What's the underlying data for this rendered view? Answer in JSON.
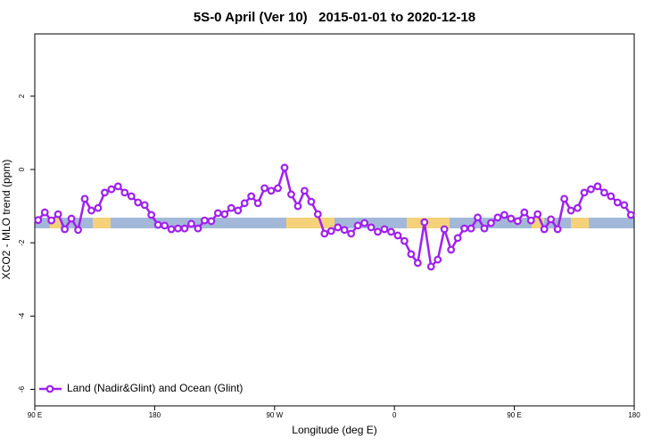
{
  "chart_data": {
    "type": "line",
    "title": "5S-0 April (Ver 10)   2015-01-01 to 2020-12-18",
    "xlabel": "Longitude (deg E)",
    "ylabel": "XCO2 - MLO trend (ppm)",
    "xlim": [
      90,
      540
    ],
    "ylim": [
      -6.45,
      3.7
    ],
    "xticks": [
      {
        "value": 90,
        "label": "90 E"
      },
      180,
      {
        "value": 270,
        "label": "90 W"
      },
      {
        "value": 360,
        "label": "0"
      },
      {
        "value": 450,
        "label": "90 E"
      },
      {
        "value": 540,
        "label": "180"
      }
    ],
    "yticks": [
      2,
      0,
      -2,
      -4,
      -6
    ],
    "grid": false,
    "legend": "bottom-left",
    "x": [
      92.5,
      97.5,
      102.5,
      107.5,
      112.5,
      117.5,
      122.5,
      127.5,
      132.5,
      137.5,
      142.5,
      147.5,
      152.5,
      157.5,
      162.5,
      167.5,
      172.5,
      177.5,
      182.5,
      187.5,
      192.5,
      197.5,
      202.5,
      207.5,
      212.5,
      217.5,
      222.5,
      227.5,
      232.5,
      237.5,
      242.5,
      247.5,
      252.5,
      257.5,
      262.5,
      267.5,
      272.5,
      277.5,
      282.5,
      287.5,
      292.5,
      297.5,
      302.5,
      307.5,
      312.5,
      317.5,
      322.5,
      327.5,
      332.5,
      337.5,
      342.5,
      347.5,
      352.5,
      357.5,
      362.5,
      367.5,
      372.5,
      377.5,
      382.5,
      387.5,
      392.5,
      397.5,
      402.5,
      407.5,
      412.5,
      417.5,
      422.5,
      427.5,
      432.5,
      437.5,
      442.5,
      447.5,
      452.5,
      457.5,
      462.5,
      467.5,
      472.5,
      477.5,
      482.5,
      487.5,
      492.5,
      497.5,
      502.5,
      507.5,
      512.5,
      517.5,
      522.5,
      527.5,
      532.5,
      537.5
    ],
    "series": [
      {
        "name": "Land (Nadir&Glint) and Ocean (Glint)",
        "color": "#a020f0",
        "values": [
          -1.38,
          -1.17,
          -1.39,
          -1.22,
          -1.63,
          -1.34,
          -1.65,
          -0.8,
          -1.12,
          -1.05,
          -0.63,
          -0.54,
          -0.46,
          -0.63,
          -0.73,
          -0.9,
          -0.97,
          -1.24,
          -1.51,
          -1.53,
          -1.63,
          -1.61,
          -1.61,
          -1.48,
          -1.61,
          -1.39,
          -1.41,
          -1.19,
          -1.22,
          -1.05,
          -1.12,
          -0.92,
          -0.73,
          -0.92,
          -0.51,
          -0.58,
          -0.51,
          0.05,
          -0.68,
          -1.0,
          -0.58,
          -0.88,
          -1.22,
          -1.75,
          -1.68,
          -1.58,
          -1.65,
          -1.75,
          -1.53,
          -1.46,
          -1.58,
          -1.7,
          -1.63,
          -1.7,
          -1.8,
          -1.95,
          -2.31,
          -2.55,
          -1.44,
          -2.65,
          -2.46,
          -1.63,
          -2.19,
          -1.87,
          -1.61,
          -1.61,
          -1.31,
          -1.61,
          -1.46,
          -1.31,
          -1.24,
          -1.34,
          -1.41,
          -1.17,
          -1.39,
          -1.22,
          -1.63,
          -1.36,
          -1.63,
          -0.8,
          -1.12,
          -1.05,
          -0.63,
          -0.54,
          -0.46,
          -0.63,
          -0.73,
          -0.9,
          -0.97,
          -1.24
        ]
      }
    ]
  }
}
